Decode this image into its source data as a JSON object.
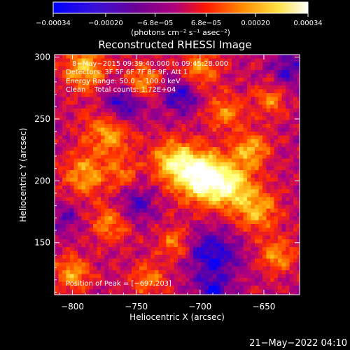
{
  "chart_data": {
    "type": "heatmap",
    "title": "Reconstructed RHESSI Image",
    "xlabel": "Heliocentric X (arcsec)",
    "ylabel": "Heliocentric Y (arcsec)",
    "xlim": [
      -814,
      -622
    ],
    "ylim": [
      108,
      302
    ],
    "x_ticks": [
      -800,
      -750,
      -700,
      -650
    ],
    "x_tick_labels": [
      "−800",
      "−750",
      "−700",
      "−650"
    ],
    "y_ticks": [
      150,
      200,
      250,
      300
    ],
    "y_tick_labels": [
      "150",
      "200",
      "250",
      "300"
    ],
    "colorbar": {
      "range": [
        -0.00034,
        0.00034
      ],
      "tick_labels": [
        "−0.00034",
        "−0.00020",
        "−6.8e−05",
        "6.8e−05",
        "0.00020",
        "0.00034"
      ],
      "tick_values": [
        -0.00034,
        -0.0002,
        -6.8e-05,
        6.8e-05,
        0.0002,
        0.00034
      ],
      "unit_label": "(photons cm⁻² s⁻¹ asec⁻²)",
      "colors": [
        "#0000ff",
        "#5a00a8",
        "#b5007a",
        "#ff2a00",
        "#ff9a00",
        "#ffff60",
        "#ffffff"
      ]
    },
    "annotations": {
      "time_range": "8−May−2015 09:39:40.000 to 09:45:28.000",
      "detectors": "Detectors: 3F 5F 6F 7F 8F 9F, Att 1",
      "energy": "Energy Range: 50.0 − 100.0 keV",
      "clean": "Clean    Total counts: 1.72E+04",
      "peak": "Position of Peak = [−697,203]"
    },
    "peak": [
      -697,
      203
    ],
    "grid": false
  },
  "footer": {
    "timestamp": "21−May−2022 04:10"
  }
}
